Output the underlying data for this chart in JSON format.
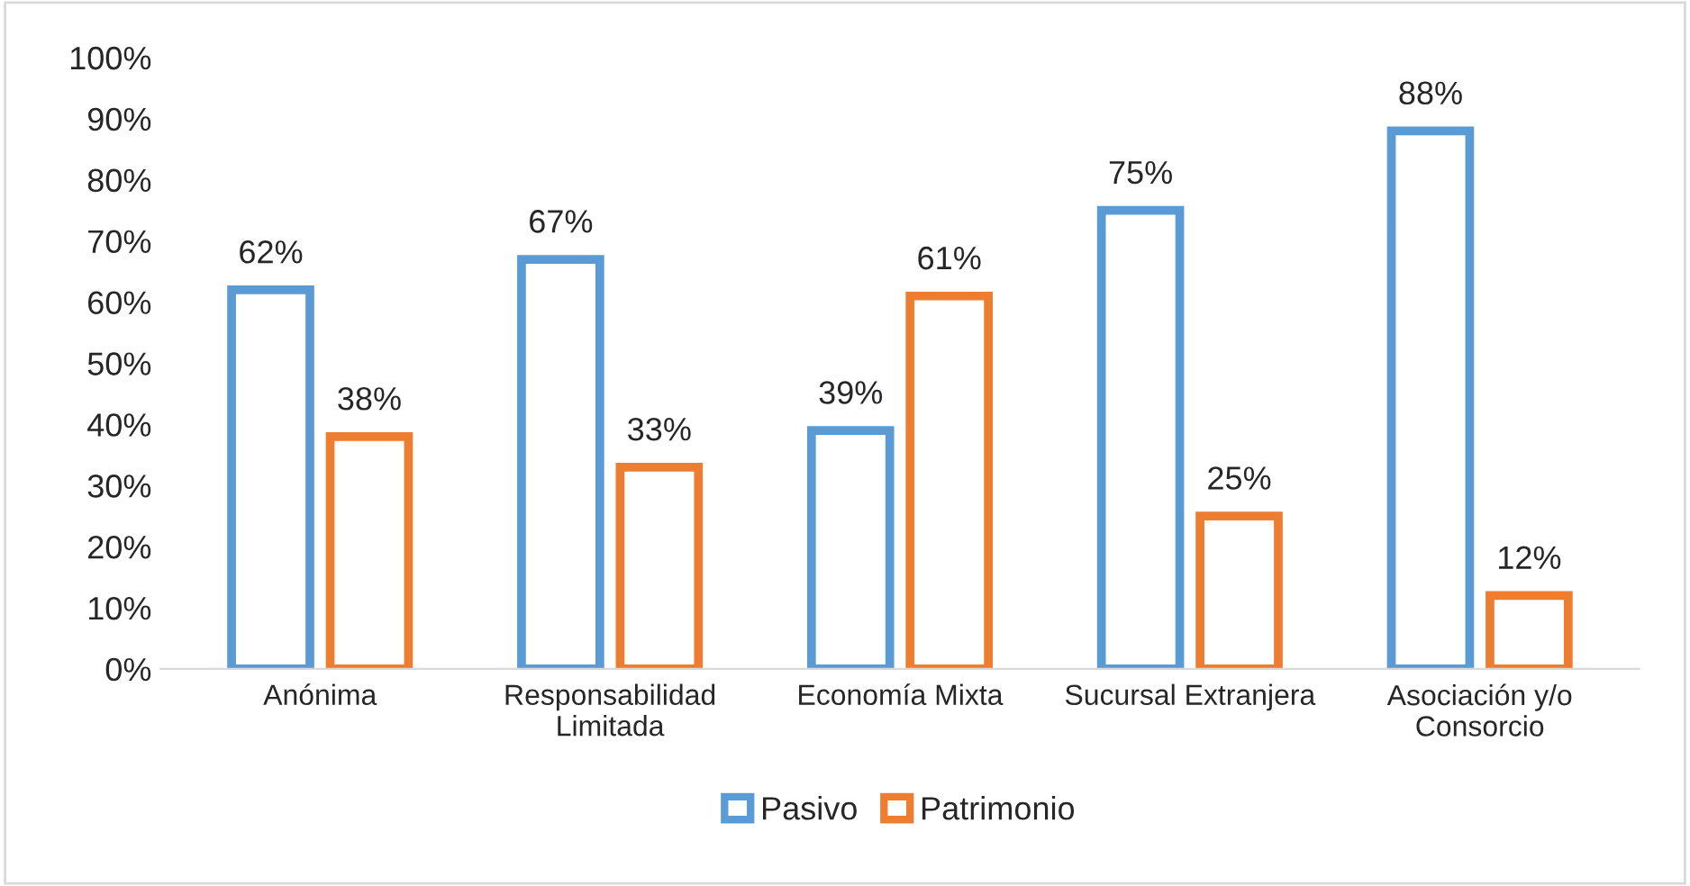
{
  "chart_data": {
    "type": "bar",
    "categories": [
      "Anónima",
      "Responsabilidad\nLimitada",
      "Economía Mixta",
      "Sucursal Extranjera",
      "Asociación y/o\nConsorcio"
    ],
    "series": [
      {
        "name": "Pasivo",
        "color": "#5b9bd5",
        "values": [
          62,
          67,
          39,
          75,
          88
        ],
        "value_labels": [
          "62%",
          "67%",
          "39%",
          "75%",
          "88%"
        ]
      },
      {
        "name": "Patrimonio",
        "color": "#ed7d31",
        "values": [
          38,
          33,
          61,
          25,
          12
        ],
        "value_labels": [
          "38%",
          "33%",
          "61%",
          "25%",
          "12%"
        ]
      }
    ],
    "ylim": [
      0,
      100
    ],
    "yticks": [
      {
        "value": 0,
        "label": "0%"
      },
      {
        "value": 10,
        "label": "10%"
      },
      {
        "value": 20,
        "label": "20%"
      },
      {
        "value": 30,
        "label": "30%"
      },
      {
        "value": 40,
        "label": "40%"
      },
      {
        "value": 50,
        "label": "50%"
      },
      {
        "value": 60,
        "label": "60%"
      },
      {
        "value": 70,
        "label": "70%"
      },
      {
        "value": 80,
        "label": "80%"
      },
      {
        "value": 90,
        "label": "90%"
      },
      {
        "value": 100,
        "label": "100%"
      }
    ],
    "grid": false,
    "legend": "bottom"
  }
}
